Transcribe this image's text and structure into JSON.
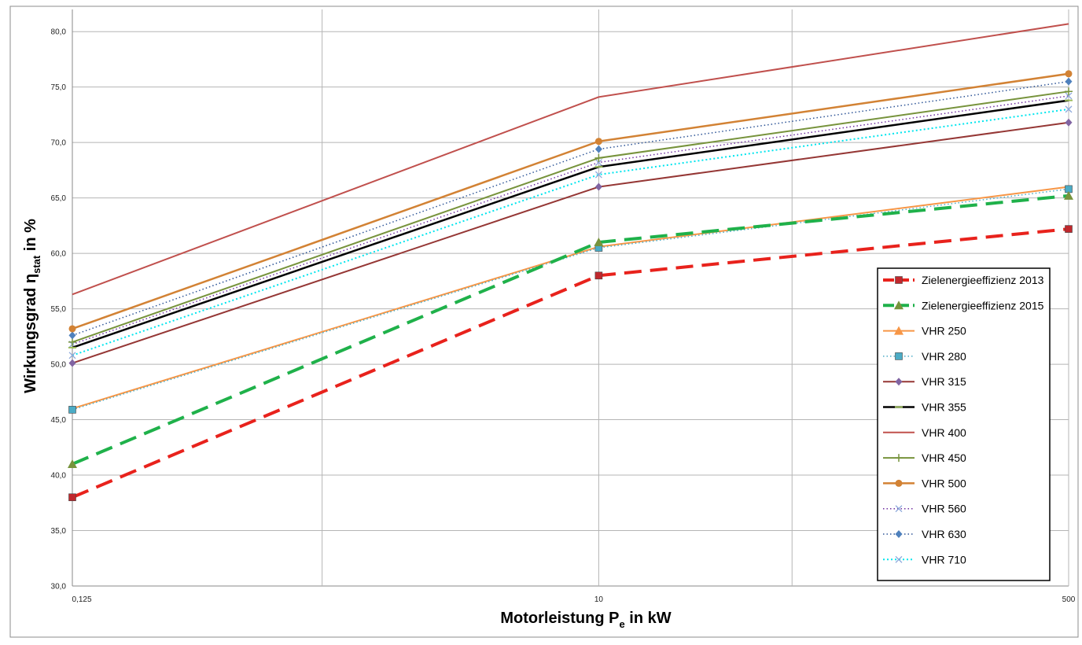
{
  "chart_data": {
    "type": "line",
    "xscale": "log",
    "x": [
      0.125,
      10,
      500
    ],
    "x_tick_labels": [
      "0,125",
      "10",
      "500"
    ],
    "x_minor_gridlines": [
      1,
      50
    ],
    "ylim": [
      30,
      82
    ],
    "y_ticks": [
      30,
      35,
      40,
      45,
      50,
      55,
      60,
      65,
      70,
      75,
      80
    ],
    "y_tick_labels": [
      "30,0",
      "35,0",
      "40,0",
      "45,0",
      "50,0",
      "55,0",
      "60,0",
      "65,0",
      "70,0",
      "75,0",
      "80,0"
    ],
    "xlabel_main": "Motorleistung P",
    "xlabel_sub": "e",
    "xlabel_tail": " in kW",
    "ylabel_main": "Wirkungsgrad η",
    "ylabel_sub": "stat",
    "ylabel_tail": " in %",
    "grid": true,
    "legend_position": "bottom-right",
    "series": [
      {
        "name": "Zielenergieeffizienz 2013",
        "values": [
          38.0,
          58.0,
          62.2
        ],
        "color": "#e8221c",
        "width": 4,
        "dash": "22,11",
        "marker": "square",
        "marker_color": "#c0282d"
      },
      {
        "name": "Zielenergieeffizienz 2015",
        "values": [
          41.0,
          61.0,
          65.2
        ],
        "color": "#1fb14a",
        "width": 4,
        "dash": "22,11",
        "marker": "triangle",
        "marker_color": "#77933c"
      },
      {
        "name": "VHR 250",
        "values": [
          46.0,
          60.6,
          66.0
        ],
        "color": "#f79646",
        "width": 2,
        "dash": "",
        "marker": "triangle",
        "marker_color": "#f79646",
        "legend_only_marker": true
      },
      {
        "name": "VHR 280",
        "values": [
          45.9,
          60.5,
          65.8
        ],
        "color": "#4bacc6",
        "width": 1.5,
        "dash": "1.5,3",
        "marker": "square",
        "marker_color": "#4bacc6"
      },
      {
        "name": "VHR 315",
        "values": [
          50.1,
          66.0,
          71.8
        ],
        "color": "#953735",
        "width": 2,
        "dash": "",
        "marker": "diamond",
        "marker_color": "#8064a2"
      },
      {
        "name": "VHR 355",
        "values": [
          51.5,
          67.8,
          73.8
        ],
        "color": "#000000",
        "width": 2.5,
        "dash": "",
        "marker": "dash",
        "marker_color": "#9bbb59"
      },
      {
        "name": "VHR 400",
        "values": [
          56.3,
          74.1,
          80.7
        ],
        "color": "#c0504d",
        "width": 2,
        "dash": "",
        "marker": "none",
        "marker_color": "#c0504d"
      },
      {
        "name": "VHR 450",
        "values": [
          52.0,
          68.6,
          74.6
        ],
        "color": "#77933c",
        "width": 2,
        "dash": "",
        "marker": "plus",
        "marker_color": "#77933c"
      },
      {
        "name": "VHR 500",
        "values": [
          53.2,
          70.1,
          76.2
        ],
        "color": "#d28234",
        "width": 2.5,
        "dash": "",
        "marker": "circle",
        "marker_color": "#d28234"
      },
      {
        "name": "VHR 560",
        "values": [
          51.8,
          68.2,
          74.2
        ],
        "color": "#7030a0",
        "width": 1.5,
        "dash": "1.5,3",
        "marker": "x",
        "marker_color": "#8ea9db"
      },
      {
        "name": "VHR 630",
        "values": [
          52.6,
          69.4,
          75.5
        ],
        "color": "#2e5597",
        "width": 1.5,
        "dash": "1.5,3",
        "marker": "diamond",
        "marker_color": "#4f81bd"
      },
      {
        "name": "VHR 710",
        "values": [
          50.8,
          67.1,
          73.0
        ],
        "color": "#00e5ee",
        "width": 2,
        "dash": "2,3",
        "marker": "x",
        "marker_color": "#8ea9db"
      }
    ]
  }
}
